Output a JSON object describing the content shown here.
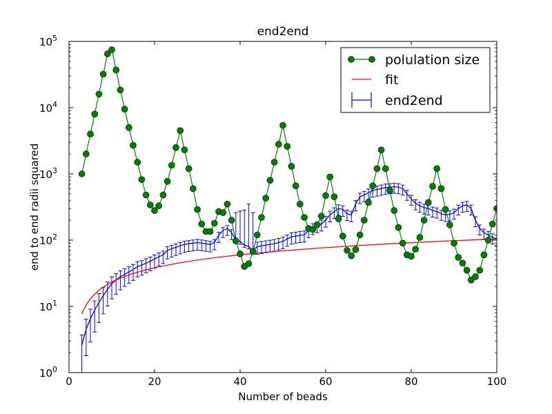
{
  "chart_data": {
    "type": "line",
    "title": "end2end",
    "xlabel": "Number of beads",
    "ylabel": "end to end radii squared",
    "xlim": [
      0,
      100
    ],
    "ylim": [
      1,
      100000
    ],
    "yscale": "log",
    "grid": false,
    "legend_position": "top-right",
    "x_ticks": [
      0,
      20,
      40,
      60,
      80,
      100
    ],
    "x_tick_labels": [
      "0",
      "20",
      "40",
      "60",
      "80",
      "100"
    ],
    "y_ticks": [
      1,
      10,
      100,
      1000,
      10000,
      100000
    ],
    "y_tick_labels": [
      {
        "base": "10",
        "exp": "0"
      },
      {
        "base": "10",
        "exp": "1"
      },
      {
        "base": "10",
        "exp": "2"
      },
      {
        "base": "10",
        "exp": "3"
      },
      {
        "base": "10",
        "exp": "4"
      },
      {
        "base": "10",
        "exp": "5"
      }
    ],
    "series": [
      {
        "name": "polulation size",
        "style": "line-markers",
        "color": "#007f00",
        "line_color": "#007f00",
        "marker_color": "#007f00",
        "x": [
          3,
          4,
          5,
          6,
          7,
          8,
          9,
          10,
          11,
          12,
          13,
          14,
          15,
          16,
          17,
          18,
          19,
          20,
          21,
          22,
          23,
          24,
          25,
          26,
          27,
          28,
          29,
          30,
          31,
          32,
          33,
          34,
          35,
          36,
          37,
          38,
          39,
          40,
          41,
          42,
          43,
          44,
          45,
          46,
          47,
          48,
          49,
          50,
          51,
          52,
          53,
          54,
          55,
          56,
          57,
          58,
          59,
          60,
          61,
          62,
          63,
          64,
          65,
          66,
          67,
          68,
          69,
          70,
          71,
          72,
          73,
          74,
          75,
          76,
          77,
          78,
          79,
          80,
          81,
          82,
          83,
          84,
          85,
          86,
          87,
          88,
          89,
          90,
          91,
          92,
          93,
          94,
          95,
          96,
          97,
          98,
          99,
          100
        ],
        "y": [
          1000,
          2000,
          4000,
          8000,
          16000,
          32000,
          65000,
          75000,
          37000,
          18500,
          9500,
          5000,
          2700,
          1500,
          820,
          480,
          340,
          280,
          330,
          480,
          770,
          1350,
          2500,
          4500,
          2300,
          1200,
          600,
          290,
          175,
          135,
          135,
          180,
          270,
          260,
          350,
          200,
          97,
          62,
          40,
          44,
          67,
          120,
          220,
          430,
          800,
          1500,
          2800,
          5400,
          2600,
          1300,
          660,
          350,
          220,
          150,
          145,
          170,
          230,
          470,
          900,
          450,
          210,
          115,
          70,
          58,
          72,
          120,
          200,
          370,
          660,
          1200,
          2300,
          1200,
          560,
          280,
          155,
          90,
          60,
          57,
          73,
          110,
          200,
          370,
          650,
          1200,
          600,
          290,
          170,
          90,
          55,
          45,
          35,
          25,
          28,
          35,
          60,
          100,
          175,
          300
        ]
      },
      {
        "name": "fit",
        "style": "line",
        "color": "#ff0000",
        "x": [
          3,
          4,
          5,
          6,
          7,
          8,
          10,
          12,
          14,
          16,
          18,
          20,
          25,
          30,
          35,
          40,
          45,
          50,
          55,
          60,
          65,
          70,
          75,
          80,
          85,
          90,
          95,
          100
        ],
        "y": [
          7.7,
          10.5,
          13,
          15.3,
          17.5,
          19.5,
          23.3,
          26.7,
          29.9,
          32.8,
          35.6,
          38.3,
          44.4,
          50,
          55.2,
          60,
          64.6,
          68.9,
          73,
          77,
          80.8,
          84.5,
          88,
          91.5,
          94.8,
          98,
          101.1,
          104.1
        ]
      },
      {
        "name": "end2end",
        "style": "errorbar",
        "color": "#0000ff",
        "x": [
          3,
          4,
          5,
          6,
          7,
          8,
          9,
          10,
          11,
          12,
          13,
          14,
          15,
          16,
          17,
          18,
          19,
          20,
          21,
          22,
          23,
          24,
          25,
          26,
          27,
          28,
          29,
          30,
          31,
          32,
          33,
          34,
          35,
          36,
          37,
          38,
          39,
          40,
          41,
          42,
          43,
          44,
          45,
          46,
          47,
          48,
          49,
          50,
          51,
          52,
          53,
          54,
          55,
          56,
          57,
          58,
          59,
          60,
          61,
          62,
          63,
          64,
          65,
          66,
          67,
          68,
          69,
          70,
          71,
          72,
          73,
          74,
          75,
          76,
          77,
          78,
          79,
          80,
          81,
          82,
          83,
          84,
          85,
          86,
          87,
          88,
          89,
          90,
          91,
          92,
          93,
          94,
          95,
          96,
          97,
          98,
          99,
          100
        ],
        "y": [
          2.6,
          4.5,
          6.5,
          8.8,
          11.5,
          14.5,
          18,
          22,
          25,
          28,
          30.5,
          33,
          36,
          40,
          42,
          45,
          48,
          52,
          56,
          60,
          70,
          74,
          78,
          82,
          86,
          88,
          90,
          92,
          90,
          88,
          86,
          92,
          118,
          140,
          150,
          130,
          100,
          95,
          85,
          80,
          70,
          80,
          82,
          84,
          86,
          88,
          92,
          96,
          104,
          112,
          115,
          118,
          120,
          140,
          155,
          165,
          175,
          200,
          240,
          270,
          300,
          290,
          250,
          240,
          350,
          450,
          480,
          520,
          560,
          580,
          600,
          620,
          630,
          640,
          630,
          600,
          500,
          420,
          360,
          330,
          310,
          300,
          280,
          270,
          250,
          240,
          245,
          260,
          300,
          330,
          340,
          300,
          200,
          150,
          130,
          120,
          110,
          105
        ],
        "err_low": [
          1.6,
          2.7,
          3.6,
          4.7,
          5.8,
          6.8,
          7.9,
          9,
          9.7,
          10.2,
          10.5,
          10.8,
          11.3,
          12.1,
          12.4,
          12.9,
          13.4,
          14.2,
          14.9,
          15.6,
          17.9,
          18.5,
          19.2,
          19.9,
          20.6,
          20.8,
          21,
          21.3,
          20.7,
          20.1,
          19.5,
          20.6,
          26,
          30.5,
          32.4,
          27.9,
          10.3,
          8.5,
          6.9,
          6.2,
          6.4,
          18.9,
          19.2,
          19.5,
          19.8,
          20.1,
          20.8,
          21.6,
          23.3,
          24.9,
          25.5,
          26.1,
          26.4,
          30.7,
          33.8,
          35.8,
          37.8,
          43,
          51.3,
          57.4,
          63.5,
          61.2,
          52.7,
          50.4,
          73.2,
          93.7,
          99.5,
          107.5,
          115.4,
          119.1,
          122.8,
          126.4,
          127.9,
          129.6,
          127.5,
          121.3,
          101.2,
          85.1,
          73,
          67,
          63,
          61,
          57,
          55,
          51,
          49,
          50,
          53,
          61,
          67,
          69,
          61,
          40.5,
          30.4,
          26.4,
          24.4,
          22.4,
          21.4
        ],
        "err_high": [
          1.1,
          1.9,
          2.6,
          3.3,
          4.1,
          4.7,
          5.3,
          5.9,
          6.2,
          6.4,
          6.5,
          6.6,
          6.9,
          7.1,
          7.1,
          7.3,
          7.4,
          7.7,
          7.9,
          8.2,
          9.4,
          9.6,
          9.8,
          10.2,
          10.4,
          10.5,
          10.6,
          10.7,
          10.5,
          10.2,
          9.9,
          10.4,
          13.1,
          15.3,
          16.1,
          13.9,
          160,
          180,
          200,
          270,
          190,
          13.3,
          13.4,
          13.5,
          13.6,
          13.8,
          14.2,
          14.6,
          15.6,
          16.6,
          16.9,
          17.2,
          17.4,
          20,
          22,
          23.3,
          24.6,
          28,
          33.3,
          37.4,
          41.3,
          39.8,
          34.1,
          32.6,
          47.4,
          60.6,
          64.4,
          69.4,
          74.4,
          76.6,
          78.9,
          81.1,
          81.9,
          82.8,
          81.4,
          77.6,
          64.8,
          54.7,
          47,
          43,
          40,
          39,
          36,
          35,
          32,
          31,
          31,
          33,
          38,
          42,
          44,
          39,
          26,
          19.4,
          17,
          15.9,
          14.4,
          13.7
        ]
      }
    ]
  }
}
